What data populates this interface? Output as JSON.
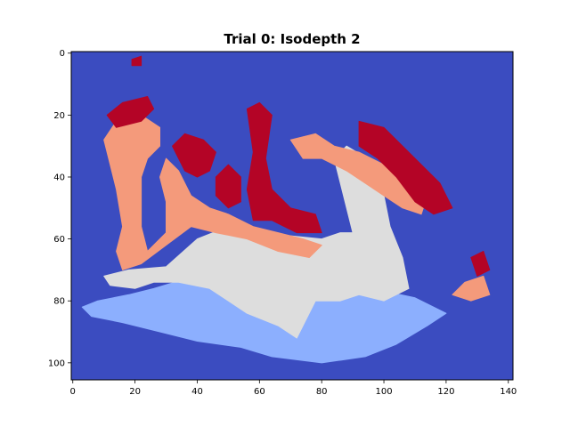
{
  "chart_data": {
    "type": "heatmap",
    "title": "Trial 0: Isodepth 2",
    "xlabel": "",
    "ylabel": "",
    "xlim": [
      -0.5,
      141.5
    ],
    "ylim": [
      105.5,
      -0.5
    ],
    "x_ticks": [
      0,
      20,
      40,
      60,
      80,
      100,
      120,
      140
    ],
    "y_ticks": [
      0,
      20,
      40,
      60,
      80,
      100
    ],
    "colormap": "coolwarm",
    "levels": [
      {
        "level": 0,
        "color": "#3b4cc0"
      },
      {
        "level": 1,
        "color": "#8caffe"
      },
      {
        "level": 2,
        "color": "#dddddd"
      },
      {
        "level": 3,
        "color": "#f49a7b"
      },
      {
        "level": 4,
        "color": "#b40426"
      }
    ],
    "background_level": 0,
    "regions": [
      {
        "level": 1,
        "polygon": [
          [
            3,
            82
          ],
          [
            8,
            80
          ],
          [
            18,
            78
          ],
          [
            26,
            76
          ],
          [
            36,
            73
          ],
          [
            46,
            70
          ],
          [
            58,
            69
          ],
          [
            72,
            71
          ],
          [
            84,
            75
          ],
          [
            96,
            76
          ],
          [
            110,
            79
          ],
          [
            120,
            84
          ],
          [
            114,
            88
          ],
          [
            104,
            94
          ],
          [
            94,
            98
          ],
          [
            80,
            100
          ],
          [
            64,
            98
          ],
          [
            54,
            95
          ],
          [
            40,
            93
          ],
          [
            28,
            90
          ],
          [
            16,
            87
          ],
          [
            6,
            85
          ]
        ]
      },
      {
        "level": 2,
        "polygon": [
          [
            10,
            72
          ],
          [
            18,
            70
          ],
          [
            30,
            69
          ],
          [
            40,
            60
          ],
          [
            50,
            56
          ],
          [
            60,
            58
          ],
          [
            70,
            59
          ],
          [
            80,
            60
          ],
          [
            86,
            58
          ],
          [
            90,
            58
          ],
          [
            84,
            34
          ],
          [
            88,
            30
          ],
          [
            98,
            36
          ],
          [
            102,
            56
          ],
          [
            106,
            66
          ],
          [
            108,
            76
          ],
          [
            100,
            80
          ],
          [
            92,
            78
          ],
          [
            86,
            80
          ],
          [
            78,
            80
          ],
          [
            72,
            92
          ],
          [
            66,
            88
          ],
          [
            56,
            84
          ],
          [
            50,
            80
          ],
          [
            44,
            76
          ],
          [
            34,
            74
          ],
          [
            26,
            74
          ],
          [
            20,
            76
          ],
          [
            12,
            75
          ]
        ]
      },
      {
        "level": 3,
        "polygon": [
          [
            10,
            28
          ],
          [
            14,
            22
          ],
          [
            22,
            20
          ],
          [
            28,
            24
          ],
          [
            28,
            30
          ],
          [
            24,
            34
          ],
          [
            22,
            40
          ],
          [
            22,
            56
          ],
          [
            24,
            64
          ],
          [
            30,
            58
          ],
          [
            30,
            48
          ],
          [
            28,
            40
          ],
          [
            30,
            34
          ],
          [
            34,
            38
          ],
          [
            38,
            46
          ],
          [
            44,
            50
          ],
          [
            50,
            52
          ],
          [
            58,
            56
          ],
          [
            66,
            58
          ],
          [
            74,
            60
          ],
          [
            80,
            62
          ],
          [
            76,
            66
          ],
          [
            66,
            64
          ],
          [
            56,
            60
          ],
          [
            46,
            58
          ],
          [
            38,
            56
          ],
          [
            30,
            62
          ],
          [
            22,
            68
          ],
          [
            16,
            70
          ],
          [
            14,
            64
          ],
          [
            16,
            56
          ],
          [
            14,
            44
          ],
          [
            12,
            36
          ]
        ]
      },
      {
        "level": 3,
        "polygon": [
          [
            70,
            28
          ],
          [
            78,
            26
          ],
          [
            84,
            30
          ],
          [
            92,
            32
          ],
          [
            100,
            36
          ],
          [
            108,
            40
          ],
          [
            114,
            46
          ],
          [
            112,
            52
          ],
          [
            106,
            50
          ],
          [
            100,
            46
          ],
          [
            94,
            42
          ],
          [
            88,
            38
          ],
          [
            80,
            34
          ],
          [
            74,
            34
          ]
        ]
      },
      {
        "level": 3,
        "polygon": [
          [
            126,
            74
          ],
          [
            132,
            72
          ],
          [
            134,
            78
          ],
          [
            128,
            80
          ],
          [
            122,
            78
          ]
        ]
      },
      {
        "level": 4,
        "polygon": [
          [
            11,
            20
          ],
          [
            16,
            16
          ],
          [
            24,
            14
          ],
          [
            26,
            18
          ],
          [
            22,
            22
          ],
          [
            14,
            24
          ]
        ]
      },
      {
        "level": 4,
        "polygon": [
          [
            32,
            30
          ],
          [
            36,
            26
          ],
          [
            42,
            28
          ],
          [
            46,
            32
          ],
          [
            44,
            38
          ],
          [
            40,
            40
          ],
          [
            36,
            38
          ]
        ]
      },
      {
        "level": 4,
        "polygon": [
          [
            46,
            40
          ],
          [
            50,
            36
          ],
          [
            54,
            40
          ],
          [
            54,
            48
          ],
          [
            50,
            50
          ],
          [
            46,
            46
          ]
        ]
      },
      {
        "level": 4,
        "polygon": [
          [
            56,
            18
          ],
          [
            60,
            16
          ],
          [
            64,
            20
          ],
          [
            62,
            34
          ],
          [
            64,
            44
          ],
          [
            70,
            50
          ],
          [
            78,
            52
          ],
          [
            80,
            58
          ],
          [
            72,
            58
          ],
          [
            64,
            54
          ],
          [
            58,
            54
          ],
          [
            56,
            44
          ],
          [
            58,
            32
          ]
        ]
      },
      {
        "level": 4,
        "polygon": [
          [
            92,
            22
          ],
          [
            100,
            24
          ],
          [
            106,
            30
          ],
          [
            112,
            36
          ],
          [
            118,
            42
          ],
          [
            122,
            50
          ],
          [
            116,
            52
          ],
          [
            110,
            48
          ],
          [
            104,
            40
          ],
          [
            98,
            34
          ],
          [
            92,
            30
          ]
        ]
      },
      {
        "level": 4,
        "polygon": [
          [
            128,
            66
          ],
          [
            132,
            64
          ],
          [
            134,
            70
          ],
          [
            130,
            72
          ]
        ]
      },
      {
        "level": 4,
        "polygon": [
          [
            19,
            2
          ],
          [
            22,
            1
          ],
          [
            22,
            4
          ],
          [
            19,
            4
          ]
        ]
      }
    ]
  }
}
